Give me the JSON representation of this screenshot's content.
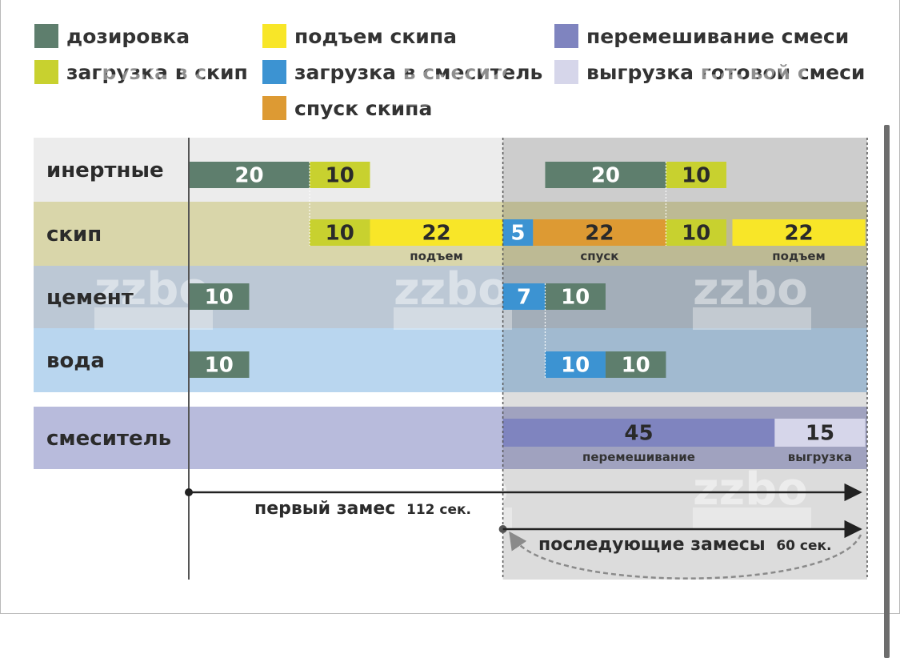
{
  "colors": {
    "dosing": "#5e7e6d",
    "skip_loading": "#c8d12f",
    "skip_lift": "#f8e628",
    "mixer_loading": "#3c93d2",
    "skip_lowering": "#dd9a33",
    "mixing": "#7f84bf",
    "unloading": "#d6d6ea"
  },
  "legend": [
    {
      "key": "dosing",
      "label": "дозировка"
    },
    {
      "key": "skip_loading",
      "label": "загрузка в скип"
    },
    {
      "key": "skip_lift",
      "label": "подъем скипа"
    },
    {
      "key": "mixer_loading",
      "label": "загрузка в смеситель"
    },
    {
      "key": "skip_lowering",
      "label": "спуск скипа"
    },
    {
      "key": "mixing",
      "label": "перемешивание смеси"
    },
    {
      "key": "unloading",
      "label": "выгрузка готовой смеси"
    }
  ],
  "rows": [
    {
      "id": "inert",
      "label": "инертные"
    },
    {
      "id": "skip",
      "label": "скип"
    },
    {
      "id": "cement",
      "label": "цемент"
    },
    {
      "id": "water",
      "label": "вода"
    },
    {
      "id": "mixer",
      "label": "смеситель"
    }
  ],
  "segments": [
    {
      "row": "inert",
      "start": 0,
      "duration": 20,
      "type": "dosing",
      "label": "20"
    },
    {
      "row": "inert",
      "start": 20,
      "duration": 10,
      "type": "skip_loading",
      "label": "10"
    },
    {
      "row": "inert",
      "start": 59,
      "duration": 20,
      "type": "dosing",
      "label": "20"
    },
    {
      "row": "inert",
      "start": 79,
      "duration": 10,
      "type": "skip_loading",
      "label": "10"
    },
    {
      "row": "skip",
      "start": 20,
      "duration": 10,
      "type": "skip_loading",
      "label": "10"
    },
    {
      "row": "skip",
      "start": 30,
      "duration": 22,
      "type": "skip_lift",
      "label": "22",
      "sublabel": "подъем"
    },
    {
      "row": "skip",
      "start": 52,
      "duration": 5,
      "type": "mixer_loading",
      "label": "5"
    },
    {
      "row": "skip",
      "start": 57,
      "duration": 22,
      "type": "skip_lowering",
      "label": "22",
      "sublabel": "спуск"
    },
    {
      "row": "skip",
      "start": 79,
      "duration": 10,
      "type": "skip_loading",
      "label": "10"
    },
    {
      "row": "skip",
      "start": 90,
      "duration": 22,
      "type": "skip_lift",
      "label": "22",
      "sublabel": "подъем"
    },
    {
      "row": "cement",
      "start": 0,
      "duration": 10,
      "type": "dosing",
      "label": "10"
    },
    {
      "row": "cement",
      "start": 52,
      "duration": 7,
      "type": "mixer_loading",
      "label": "7"
    },
    {
      "row": "cement",
      "start": 59,
      "duration": 10,
      "type": "dosing",
      "label": "10"
    },
    {
      "row": "water",
      "start": 0,
      "duration": 10,
      "type": "dosing",
      "label": "10"
    },
    {
      "row": "water",
      "start": 59,
      "duration": 10,
      "type": "mixer_loading",
      "label": "10"
    },
    {
      "row": "water",
      "start": 69,
      "duration": 10,
      "type": "dosing",
      "label": "10"
    },
    {
      "row": "mixer",
      "start": 52,
      "duration": 45,
      "type": "mixing",
      "label": "45",
      "sublabel": "перемешивание"
    },
    {
      "row": "mixer",
      "start": 97,
      "duration": 15,
      "type": "unloading",
      "label": "15",
      "sublabel": "выгрузка"
    }
  ],
  "cycles": {
    "first": {
      "start": 0,
      "end": 112,
      "label": "первый замес",
      "value": "112 сек."
    },
    "subsequent": {
      "start": 52,
      "end": 112,
      "label": "последующие замесы",
      "value": "60 сек."
    }
  },
  "watermark": "zzbo"
}
